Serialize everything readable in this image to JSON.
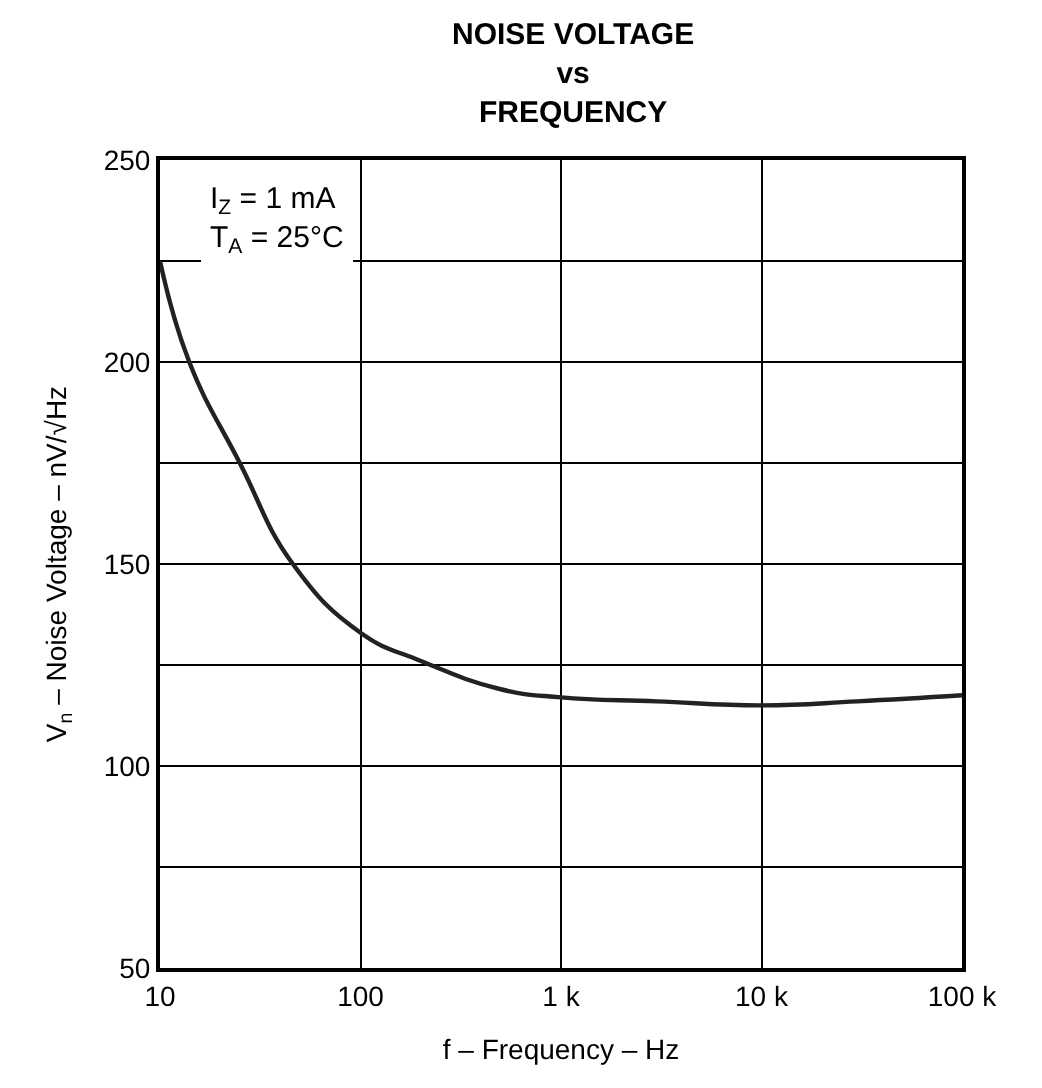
{
  "chart_data": {
    "type": "line",
    "title": "NOISE VOLTAGE\nvs\nFREQUENCY",
    "xlabel": "f – Frequency – Hz",
    "ylabel": "V$_{n}$ – Noise Voltage – nV/√Hz",
    "annotations": [
      "I$_{Z}$ = 1 mA",
      "T$_{A}$ = 25°C"
    ],
    "log": "x",
    "grid": true,
    "marker": "none",
    "line_style": "solid",
    "xlim": [
      10,
      100000
    ],
    "xticks": [
      10,
      100,
      {
        "value": 1000,
        "label": "1 k"
      },
      {
        "value": 10000,
        "label": "10 k"
      },
      {
        "value": 100000,
        "label": "100 k"
      }
    ],
    "ylim": [
      50,
      250
    ],
    "yticks": [
      50,
      {
        "value": 75,
        "label": null
      },
      100,
      {
        "value": 125,
        "label": null
      },
      150,
      {
        "value": 175,
        "label": null
      },
      200,
      {
        "value": 225,
        "label": null
      },
      250
    ],
    "series": [
      {
        "color": "#222222",
        "x": [
          10,
          14,
          25,
          46,
          100,
          200,
          500,
          1000,
          3000,
          10000,
          30000,
          100000
        ],
        "values": [
          225,
          200,
          175,
          150,
          133,
          126,
          119,
          117,
          116,
          115,
          116,
          117.5
        ]
      }
    ]
  }
}
